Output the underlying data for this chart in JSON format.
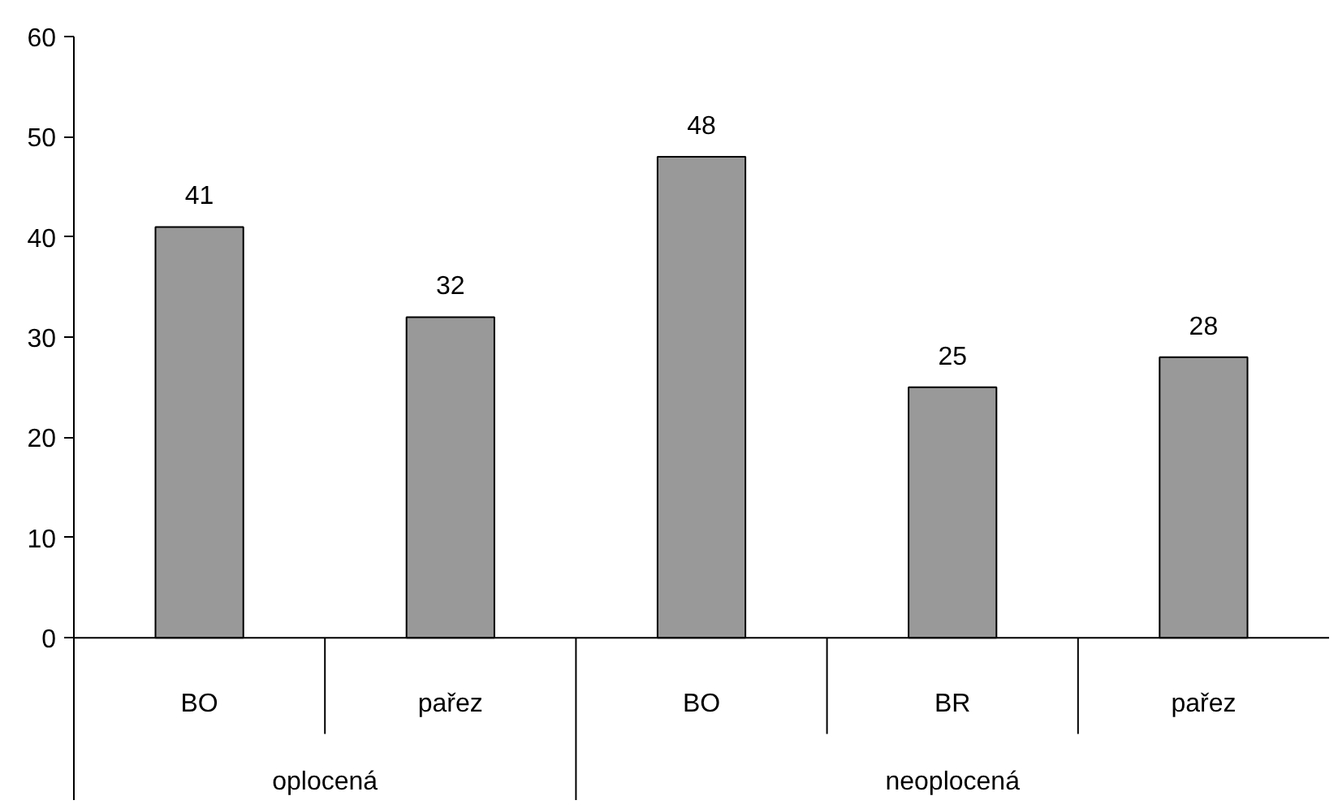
{
  "chart_data": {
    "type": "bar",
    "categories": [
      "BO",
      "pařez",
      "BO",
      "BR",
      "pařez"
    ],
    "values": [
      41,
      32,
      48,
      25,
      28
    ],
    "color": "#999999",
    "annotations": [
      "oplocená",
      "neoplocená"
    ],
    "ylim": [
      0,
      60
    ],
    "yticks": [
      0,
      10,
      20,
      30,
      40,
      50,
      60
    ],
    "data_labels": true,
    "grid": false
  }
}
